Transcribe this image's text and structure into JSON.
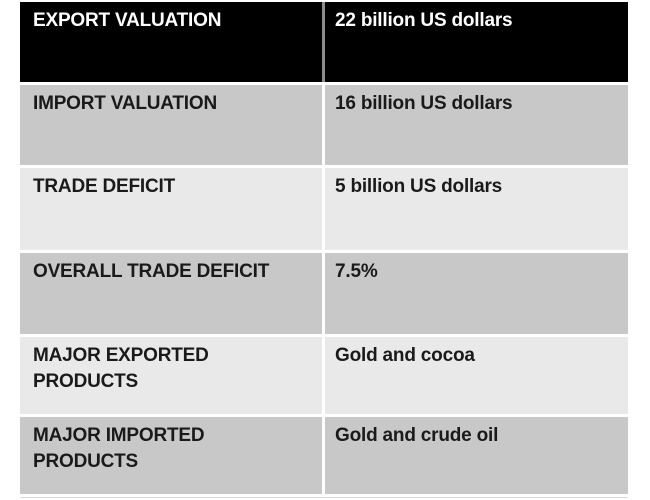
{
  "chart_data": {
    "type": "table",
    "title": "",
    "rows": [
      {
        "label": "EXPORT VALUATION",
        "value": "22 billion US dollars"
      },
      {
        "label": "IMPORT VALUATION",
        "value": "16 billion US dollars"
      },
      {
        "label": "TRADE DEFICIT",
        "value": "5 billion US dollars"
      },
      {
        "label": "OVERALL TRADE DEFICIT",
        "value": "7.5%"
      },
      {
        "label": "MAJOR EXPORTED PRODUCTS",
        "value": "Gold and cocoa"
      },
      {
        "label": "MAJOR IMPORTED PRODUCTS",
        "value": "Gold and crude oil"
      }
    ],
    "layout": {
      "header_row_index": 0,
      "banding": "alternating",
      "gridlines": "thin white between rows and columns"
    },
    "colors": {
      "header_bg": "#000000",
      "header_text": "#ffffff",
      "band_dark": "#c8c8c8",
      "band_light": "#e9e9e9",
      "body_text": "#1a1a1a",
      "divider": "#ffffff",
      "header_divider": "#8c8c8c",
      "page_bg": "#ffffff"
    }
  }
}
